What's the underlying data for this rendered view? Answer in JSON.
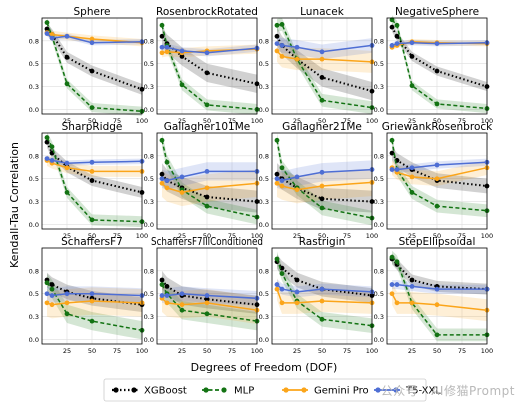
{
  "ylabel": "Kendall-Tau Correlation",
  "xlabel": "Degrees of Freedom (DOF)",
  "watermark": "公众号 · AI修猫Prompt",
  "legend": [
    "XGBoost",
    "MLP",
    "Gemini Pro",
    "T5-XXL"
  ],
  "colors": {
    "XGBoost": "#000000",
    "MLP": "#137313",
    "Gemini Pro": "#fba51a",
    "T5-XXL": "#4e6ed4"
  },
  "chart_data": [
    {
      "type": "line",
      "title": "Sphere",
      "x": [
        5,
        10,
        25,
        50,
        100
      ],
      "xlim": [
        0,
        100
      ],
      "ylim": [
        -0.05,
        1.0
      ],
      "yticks": [
        "0.0",
        "0.3",
        "0.5",
        "0.8"
      ],
      "xticks": [
        "25",
        "50",
        "75",
        "100"
      ],
      "series": [
        {
          "name": "XGBoost",
          "values": [
            0.88,
            0.82,
            0.57,
            0.42,
            0.22
          ],
          "band": 0.06
        },
        {
          "name": "MLP",
          "values": [
            0.95,
            0.8,
            0.28,
            0.02,
            -0.02
          ],
          "band": 0.05
        },
        {
          "name": "Gemini Pro",
          "values": [
            0.84,
            0.82,
            0.8,
            0.77,
            0.73
          ],
          "band": 0.04
        },
        {
          "name": "T5-XXL",
          "values": [
            0.83,
            0.78,
            0.8,
            0.73,
            0.74
          ],
          "band": 0.03
        }
      ]
    },
    {
      "type": "line",
      "title": "RosenbrockRotated",
      "x": [
        5,
        10,
        25,
        50,
        100
      ],
      "xlim": [
        0,
        100
      ],
      "ylim": [
        -0.05,
        1.0
      ],
      "yticks": [
        "0.0",
        "0.3",
        "0.5",
        "0.8"
      ],
      "xticks": [
        "25",
        "50",
        "75",
        "100"
      ],
      "series": [
        {
          "name": "XGBoost",
          "values": [
            0.8,
            0.72,
            0.58,
            0.4,
            0.28
          ],
          "band": 0.1
        },
        {
          "name": "MLP",
          "values": [
            0.92,
            0.7,
            0.27,
            0.05,
            0.0
          ],
          "band": 0.06
        },
        {
          "name": "Gemini Pro",
          "values": [
            0.62,
            0.63,
            0.62,
            0.64,
            0.66
          ],
          "band": 0.05
        },
        {
          "name": "T5-XXL",
          "values": [
            0.68,
            0.68,
            0.64,
            0.62,
            0.67
          ],
          "band": 0.04
        }
      ]
    },
    {
      "type": "line",
      "title": "Lunacek",
      "x": [
        5,
        10,
        25,
        50,
        100
      ],
      "xlim": [
        0,
        100
      ],
      "ylim": [
        -0.05,
        1.0
      ],
      "yticks": [
        "0.0",
        "0.3",
        "0.5",
        "0.8"
      ],
      "xticks": [
        "25",
        "50",
        "75",
        "100"
      ],
      "series": [
        {
          "name": "XGBoost",
          "values": [
            0.8,
            0.7,
            0.55,
            0.35,
            0.2
          ],
          "band": 0.1
        },
        {
          "name": "MLP",
          "values": [
            0.92,
            0.93,
            0.55,
            0.1,
            0.02
          ],
          "band": 0.07
        },
        {
          "name": "Gemini Pro",
          "values": [
            0.64,
            0.58,
            0.55,
            0.55,
            0.52
          ],
          "band": 0.12
        },
        {
          "name": "T5-XXL",
          "values": [
            0.72,
            0.7,
            0.68,
            0.63,
            0.7
          ],
          "band": 0.08
        }
      ]
    },
    {
      "type": "line",
      "title": "NegativeSphere",
      "x": [
        5,
        10,
        25,
        50,
        100
      ],
      "xlim": [
        0,
        100
      ],
      "ylim": [
        -0.05,
        1.0
      ],
      "yticks": [
        "0.0",
        "0.3",
        "0.5",
        "0.8"
      ],
      "xticks": [
        "25",
        "50",
        "75",
        "100"
      ],
      "series": [
        {
          "name": "XGBoost",
          "values": [
            0.9,
            0.8,
            0.58,
            0.42,
            0.25
          ],
          "band": 0.05
        },
        {
          "name": "MLP",
          "values": [
            0.98,
            0.92,
            0.26,
            0.06,
            0.01
          ],
          "band": 0.05
        },
        {
          "name": "Gemini Pro",
          "values": [
            0.68,
            0.7,
            0.74,
            0.73,
            0.72
          ],
          "band": 0.03
        },
        {
          "name": "T5-XXL",
          "values": [
            0.7,
            0.72,
            0.73,
            0.72,
            0.73
          ],
          "band": 0.03
        }
      ]
    },
    {
      "type": "line",
      "title": "SharpRidge",
      "x": [
        5,
        10,
        25,
        50,
        100
      ],
      "xlim": [
        0,
        100
      ],
      "ylim": [
        -0.05,
        1.0
      ],
      "yticks": [
        "0.0",
        "0.3",
        "0.5",
        "0.8"
      ],
      "xticks": [
        "25",
        "50",
        "75",
        "100"
      ],
      "series": [
        {
          "name": "XGBoost",
          "values": [
            0.9,
            0.78,
            0.63,
            0.48,
            0.35
          ],
          "band": 0.06
        },
        {
          "name": "MLP",
          "values": [
            0.95,
            0.85,
            0.35,
            0.05,
            0.03
          ],
          "band": 0.06
        },
        {
          "name": "Gemini Pro",
          "values": [
            0.7,
            0.67,
            0.62,
            0.58,
            0.58
          ],
          "band": 0.06
        },
        {
          "name": "T5-XXL",
          "values": [
            0.72,
            0.7,
            0.67,
            0.68,
            0.69
          ],
          "band": 0.03
        }
      ]
    },
    {
      "type": "line",
      "title": "Gallagher101Me",
      "x": [
        5,
        10,
        25,
        50,
        100
      ],
      "xlim": [
        0,
        100
      ],
      "ylim": [
        -0.05,
        1.0
      ],
      "yticks": [
        "0.0",
        "0.3",
        "0.5",
        "0.8"
      ],
      "xticks": [
        "25",
        "50",
        "75",
        "100"
      ],
      "series": [
        {
          "name": "XGBoost",
          "values": [
            0.55,
            0.48,
            0.4,
            0.3,
            0.25
          ],
          "band": 0.12
        },
        {
          "name": "MLP",
          "values": [
            0.92,
            0.68,
            0.38,
            0.2,
            0.08
          ],
          "band": 0.08
        },
        {
          "name": "Gemini Pro",
          "values": [
            0.45,
            0.4,
            0.35,
            0.4,
            0.45
          ],
          "band": 0.15
        },
        {
          "name": "T5-XXL",
          "values": [
            0.5,
            0.48,
            0.52,
            0.58,
            0.58
          ],
          "band": 0.1
        }
      ]
    },
    {
      "type": "line",
      "title": "Gallagher21Me",
      "x": [
        5,
        10,
        25,
        50,
        100
      ],
      "xlim": [
        0,
        100
      ],
      "ylim": [
        -0.05,
        1.0
      ],
      "yticks": [
        "0.0",
        "0.3",
        "0.5",
        "0.8"
      ],
      "xticks": [
        "25",
        "50",
        "75",
        "100"
      ],
      "series": [
        {
          "name": "XGBoost",
          "values": [
            0.55,
            0.5,
            0.4,
            0.28,
            0.25
          ],
          "band": 0.12
        },
        {
          "name": "MLP",
          "values": [
            0.92,
            0.62,
            0.4,
            0.18,
            0.07
          ],
          "band": 0.08
        },
        {
          "name": "Gemini Pro",
          "values": [
            0.45,
            0.42,
            0.38,
            0.42,
            0.46
          ],
          "band": 0.15
        },
        {
          "name": "T5-XXL",
          "values": [
            0.5,
            0.48,
            0.52,
            0.57,
            0.6
          ],
          "band": 0.1
        }
      ]
    },
    {
      "type": "line",
      "title": "GriewankRosenbrock",
      "x": [
        5,
        10,
        25,
        50,
        100
      ],
      "xlim": [
        0,
        100
      ],
      "ylim": [
        -0.05,
        1.0
      ],
      "yticks": [
        "0.0",
        "0.3",
        "0.5",
        "0.8"
      ],
      "xticks": [
        "25",
        "50",
        "75",
        "100"
      ],
      "series": [
        {
          "name": "XGBoost",
          "values": [
            0.78,
            0.7,
            0.6,
            0.48,
            0.42
          ],
          "band": 0.08
        },
        {
          "name": "MLP",
          "values": [
            0.92,
            0.6,
            0.35,
            0.2,
            0.15
          ],
          "band": 0.07
        },
        {
          "name": "Gemini Pro",
          "values": [
            0.62,
            0.57,
            0.52,
            0.5,
            0.62
          ],
          "band": 0.08
        },
        {
          "name": "T5-XXL",
          "values": [
            0.6,
            0.6,
            0.62,
            0.65,
            0.68
          ],
          "band": 0.04
        }
      ]
    },
    {
      "type": "line",
      "title": "SchaffersF7",
      "x": [
        5,
        10,
        25,
        50,
        100
      ],
      "xlim": [
        0,
        100
      ],
      "ylim": [
        -0.05,
        1.0
      ],
      "yticks": [
        "0.0",
        "0.3",
        "0.5",
        "0.8"
      ],
      "xticks": [
        "25",
        "50",
        "75",
        "100"
      ],
      "series": [
        {
          "name": "XGBoost",
          "values": [
            0.65,
            0.6,
            0.52,
            0.45,
            0.38
          ],
          "band": 0.08
        },
        {
          "name": "MLP",
          "values": [
            0.62,
            0.55,
            0.28,
            0.2,
            0.1
          ],
          "band": 0.1
        },
        {
          "name": "Gemini Pro",
          "values": [
            0.4,
            0.38,
            0.4,
            0.42,
            0.4
          ],
          "band": 0.15
        },
        {
          "name": "T5-XXL",
          "values": [
            0.5,
            0.48,
            0.5,
            0.5,
            0.48
          ],
          "band": 0.08
        }
      ]
    },
    {
      "type": "line",
      "title": "SchaffersF7IllConditioned",
      "x": [
        5,
        10,
        25,
        50,
        100
      ],
      "xlim": [
        0,
        100
      ],
      "ylim": [
        -0.05,
        1.0
      ],
      "yticks": [
        "0.0",
        "0.3",
        "0.5",
        "0.8"
      ],
      "xticks": [
        "25",
        "50",
        "75",
        "100"
      ],
      "series": [
        {
          "name": "XGBoost",
          "values": [
            0.65,
            0.58,
            0.48,
            0.44,
            0.38
          ],
          "band": 0.1
        },
        {
          "name": "MLP",
          "values": [
            0.6,
            0.5,
            0.32,
            0.28,
            0.2
          ],
          "band": 0.1
        },
        {
          "name": "Gemini Pro",
          "values": [
            0.45,
            0.4,
            0.38,
            0.4,
            0.32
          ],
          "band": 0.15
        },
        {
          "name": "T5-XXL",
          "values": [
            0.48,
            0.48,
            0.5,
            0.48,
            0.45
          ],
          "band": 0.08
        }
      ]
    },
    {
      "type": "line",
      "title": "Rastrigin",
      "x": [
        5,
        10,
        25,
        50,
        100
      ],
      "xlim": [
        0,
        100
      ],
      "ylim": [
        -0.05,
        1.0
      ],
      "yticks": [
        "0.0",
        "0.3",
        "0.5",
        "0.8"
      ],
      "xticks": [
        "25",
        "50",
        "75",
        "100"
      ],
      "series": [
        {
          "name": "XGBoost",
          "values": [
            0.85,
            0.78,
            0.65,
            0.55,
            0.48
          ],
          "band": 0.08
        },
        {
          "name": "MLP",
          "values": [
            0.88,
            0.72,
            0.42,
            0.22,
            0.15
          ],
          "band": 0.08
        },
        {
          "name": "Gemini Pro",
          "values": [
            0.55,
            0.4,
            0.4,
            0.42,
            0.4
          ],
          "band": 0.12
        },
        {
          "name": "T5-XXL",
          "values": [
            0.6,
            0.55,
            0.52,
            0.55,
            0.52
          ],
          "band": 0.06
        }
      ]
    },
    {
      "type": "line",
      "title": "StepEllipsoidal",
      "x": [
        5,
        10,
        25,
        50,
        100
      ],
      "xlim": [
        0,
        100
      ],
      "ylim": [
        -0.05,
        1.0
      ],
      "yticks": [
        "0.0",
        "0.3",
        "0.5",
        "0.8"
      ],
      "xticks": [
        "25",
        "50",
        "75",
        "100"
      ],
      "series": [
        {
          "name": "XGBoost",
          "values": [
            0.88,
            0.82,
            0.65,
            0.58,
            0.55
          ],
          "band": 0.06
        },
        {
          "name": "MLP",
          "values": [
            0.9,
            0.85,
            0.4,
            0.05,
            0.05
          ],
          "band": 0.07
        },
        {
          "name": "Gemini Pro",
          "values": [
            0.5,
            0.4,
            0.4,
            0.38,
            0.32
          ],
          "band": 0.12
        },
        {
          "name": "T5-XXL",
          "values": [
            0.6,
            0.6,
            0.58,
            0.55,
            0.55
          ],
          "band": 0.05
        }
      ]
    }
  ]
}
